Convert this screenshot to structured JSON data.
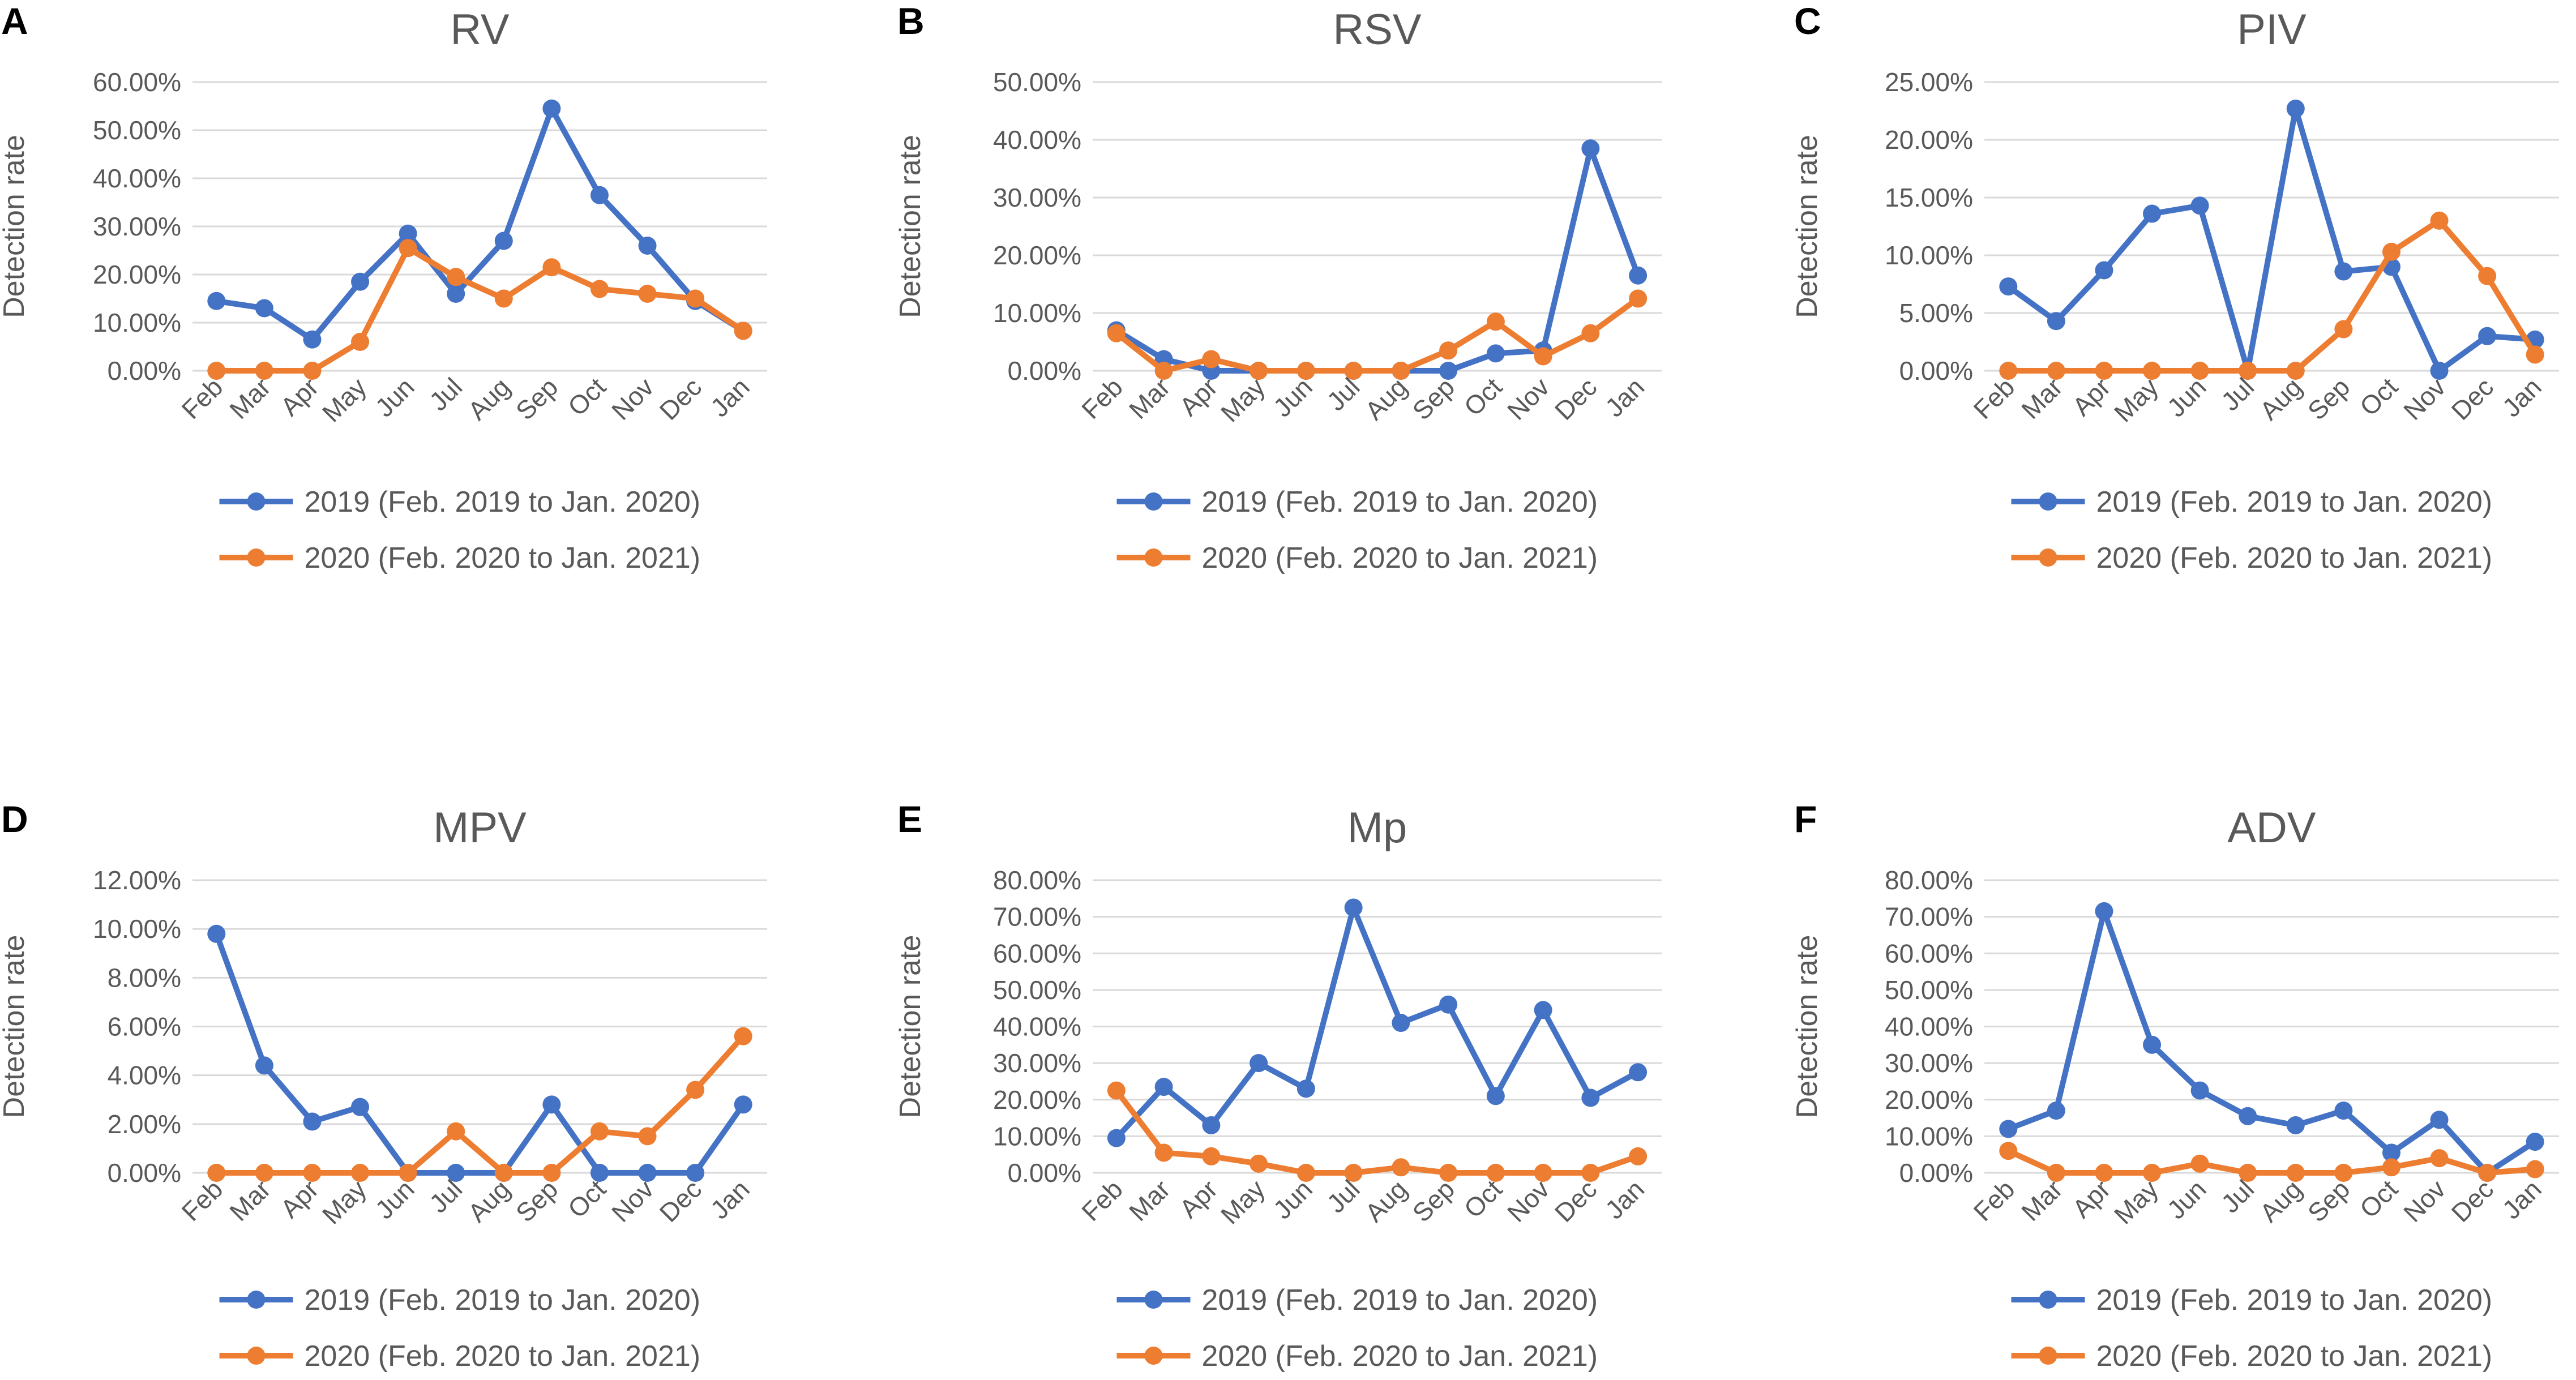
{
  "colors": {
    "series_2019": "#4472C4",
    "series_2020": "#ED7D31",
    "grid": "#D9D9D9",
    "text": "#595959"
  },
  "legend": [
    "2019 (Feb. 2019 to Jan. 2020)",
    "2020 (Feb. 2020 to Jan. 2021)"
  ],
  "chart_data": [
    {
      "type": "line",
      "panel_label": "A",
      "title": "RV",
      "ylabel": "Detection rate",
      "categories": [
        "Feb",
        "Mar",
        "Apr",
        "May",
        "Jun",
        "Jul",
        "Aug",
        "Sep",
        "Oct",
        "Nov",
        "Dec",
        "Jan"
      ],
      "ylim": [
        0,
        60
      ],
      "yticks": [
        0,
        10,
        20,
        30,
        40,
        50,
        60
      ],
      "ytick_labels": [
        "0.00%",
        "10.00%",
        "20.00%",
        "30.00%",
        "40.00%",
        "50.00%",
        "60.00%"
      ],
      "series": [
        {
          "name": "2019 (Feb. 2019 to Jan. 2020)",
          "values": [
            14.5,
            13,
            6.5,
            18.5,
            28.5,
            16,
            27,
            54.5,
            36.5,
            26,
            14.5,
            8.3
          ]
        },
        {
          "name": "2020 (Feb. 2020 to Jan. 2021)",
          "values": [
            0,
            0,
            0,
            6,
            25.5,
            19.5,
            15,
            21.5,
            17,
            16,
            15,
            8.3
          ]
        }
      ]
    },
    {
      "type": "line",
      "panel_label": "B",
      "title": "RSV",
      "ylabel": "Detection rate",
      "categories": [
        "Feb",
        "Mar",
        "Apr",
        "May",
        "Jun",
        "Jul",
        "Aug",
        "Sep",
        "Oct",
        "Nov",
        "Dec",
        "Jan"
      ],
      "ylim": [
        0,
        50
      ],
      "yticks": [
        0,
        10,
        20,
        30,
        40,
        50
      ],
      "ytick_labels": [
        "0.00%",
        "10.00%",
        "20.00%",
        "30.00%",
        "40.00%",
        "50.00%"
      ],
      "series": [
        {
          "name": "2019 (Feb. 2019 to Jan. 2020)",
          "values": [
            7,
            2,
            0,
            0,
            0,
            0,
            0,
            0,
            3,
            3.5,
            38.5,
            16.5
          ]
        },
        {
          "name": "2020 (Feb. 2020 to Jan. 2021)",
          "values": [
            6.5,
            0,
            2,
            0,
            0,
            0,
            0,
            3.5,
            8.5,
            2.5,
            6.5,
            12.5
          ]
        }
      ]
    },
    {
      "type": "line",
      "panel_label": "C",
      "title": "PIV",
      "ylabel": "Detection rate",
      "categories": [
        "Feb",
        "Mar",
        "Apr",
        "May",
        "Jun",
        "Jul",
        "Aug",
        "Sep",
        "Oct",
        "Nov",
        "Dec",
        "Jan"
      ],
      "ylim": [
        0,
        25
      ],
      "yticks": [
        0,
        5,
        10,
        15,
        20,
        25
      ],
      "ytick_labels": [
        "0.00%",
        "5.00%",
        "10.00%",
        "15.00%",
        "20.00%",
        "25.00%"
      ],
      "series": [
        {
          "name": "2019 (Feb. 2019 to Jan. 2020)",
          "values": [
            7.3,
            4.3,
            8.7,
            13.6,
            14.3,
            0,
            22.7,
            8.6,
            9,
            0,
            3,
            2.7
          ]
        },
        {
          "name": "2020 (Feb. 2020 to Jan. 2021)",
          "values": [
            0,
            0,
            0,
            0,
            0,
            0,
            0,
            3.6,
            10.3,
            13,
            8.2,
            1.4
          ]
        }
      ]
    },
    {
      "type": "line",
      "panel_label": "D",
      "title": "MPV",
      "ylabel": "Detection rate",
      "categories": [
        "Feb",
        "Mar",
        "Apr",
        "May",
        "Jun",
        "Jul",
        "Aug",
        "Sep",
        "Oct",
        "Nov",
        "Dec",
        "Jan"
      ],
      "ylim": [
        0,
        12
      ],
      "yticks": [
        0,
        2,
        4,
        6,
        8,
        10,
        12
      ],
      "ytick_labels": [
        "0.00%",
        "2.00%",
        "4.00%",
        "6.00%",
        "8.00%",
        "10.00%",
        "12.00%"
      ],
      "series": [
        {
          "name": "2019 (Feb. 2019 to Jan. 2020)",
          "values": [
            9.8,
            4.4,
            2.1,
            2.7,
            0,
            0,
            0,
            2.8,
            0,
            0,
            0,
            2.8
          ]
        },
        {
          "name": "2020 (Feb. 2020 to Jan. 2021)",
          "values": [
            0,
            0,
            0,
            0,
            0,
            1.7,
            0,
            0,
            1.7,
            1.5,
            3.4,
            5.6
          ]
        }
      ]
    },
    {
      "type": "line",
      "panel_label": "E",
      "title": "Mp",
      "ylabel": "Detection rate",
      "categories": [
        "Feb",
        "Mar",
        "Apr",
        "May",
        "Jun",
        "Jul",
        "Aug",
        "Sep",
        "Oct",
        "Nov",
        "Dec",
        "Jan"
      ],
      "ylim": [
        0,
        80
      ],
      "yticks": [
        0,
        10,
        20,
        30,
        40,
        50,
        60,
        70,
        80
      ],
      "ytick_labels": [
        "0.00%",
        "10.00%",
        "20.00%",
        "30.00%",
        "40.00%",
        "50.00%",
        "60.00%",
        "70.00%",
        "80.00%"
      ],
      "series": [
        {
          "name": "2019 (Feb. 2019 to Jan. 2020)",
          "values": [
            9.5,
            23.5,
            13,
            30,
            23,
            72.5,
            41,
            46,
            21,
            44.5,
            20.5,
            27.5
          ]
        },
        {
          "name": "2020 (Feb. 2020 to Jan. 2021)",
          "values": [
            22.5,
            5.5,
            4.5,
            2.5,
            0,
            0,
            1.5,
            0,
            0,
            0,
            0,
            4.5
          ]
        }
      ]
    },
    {
      "type": "line",
      "panel_label": "F",
      "title": "ADV",
      "ylabel": "Detection rate",
      "categories": [
        "Feb",
        "Mar",
        "Apr",
        "May",
        "Jun",
        "Jul",
        "Aug",
        "Sep",
        "Oct",
        "Nov",
        "Dec",
        "Jan"
      ],
      "ylim": [
        0,
        80
      ],
      "yticks": [
        0,
        10,
        20,
        30,
        40,
        50,
        60,
        70,
        80
      ],
      "ytick_labels": [
        "0.00%",
        "10.00%",
        "20.00%",
        "30.00%",
        "40.00%",
        "50.00%",
        "60.00%",
        "70.00%",
        "80.00%"
      ],
      "series": [
        {
          "name": "2019 (Feb. 2019 to Jan. 2020)",
          "values": [
            12,
            17,
            71.5,
            35,
            22.5,
            15.5,
            13,
            17,
            5.5,
            14.5,
            0,
            8.5
          ]
        },
        {
          "name": "2020 (Feb. 2020 to Jan. 2021)",
          "values": [
            6,
            0,
            0,
            0,
            2.5,
            0,
            0,
            0,
            1.5,
            4,
            0,
            1
          ]
        }
      ]
    }
  ]
}
